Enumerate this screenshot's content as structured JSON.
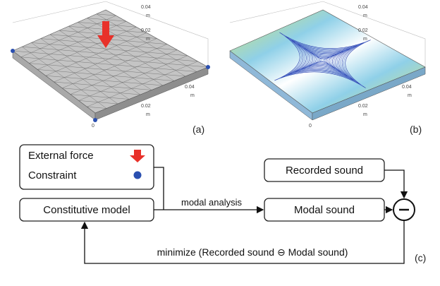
{
  "panels": [
    {
      "label": "(a)",
      "axis_labels": [
        "0.04",
        "m",
        "0.02",
        "m",
        "0.04",
        "m",
        "0.02",
        "m",
        "0"
      ]
    },
    {
      "label": "(b)",
      "axis_labels": [
        "0.04",
        "m",
        "0.02",
        "m",
        "0.04",
        "m",
        "0.02",
        "m",
        "0"
      ]
    }
  ],
  "diagram": {
    "legend": {
      "force": "External force",
      "constraint": "Constraint"
    },
    "nodes": {
      "constitutive": "Constitutive model",
      "modal": "Modal sound",
      "recorded": "Recorded sound"
    },
    "edge_label": "modal analysis",
    "feedback_label": "minimize (Recorded sound ⊖ Modal sound)",
    "label": "(c)"
  }
}
